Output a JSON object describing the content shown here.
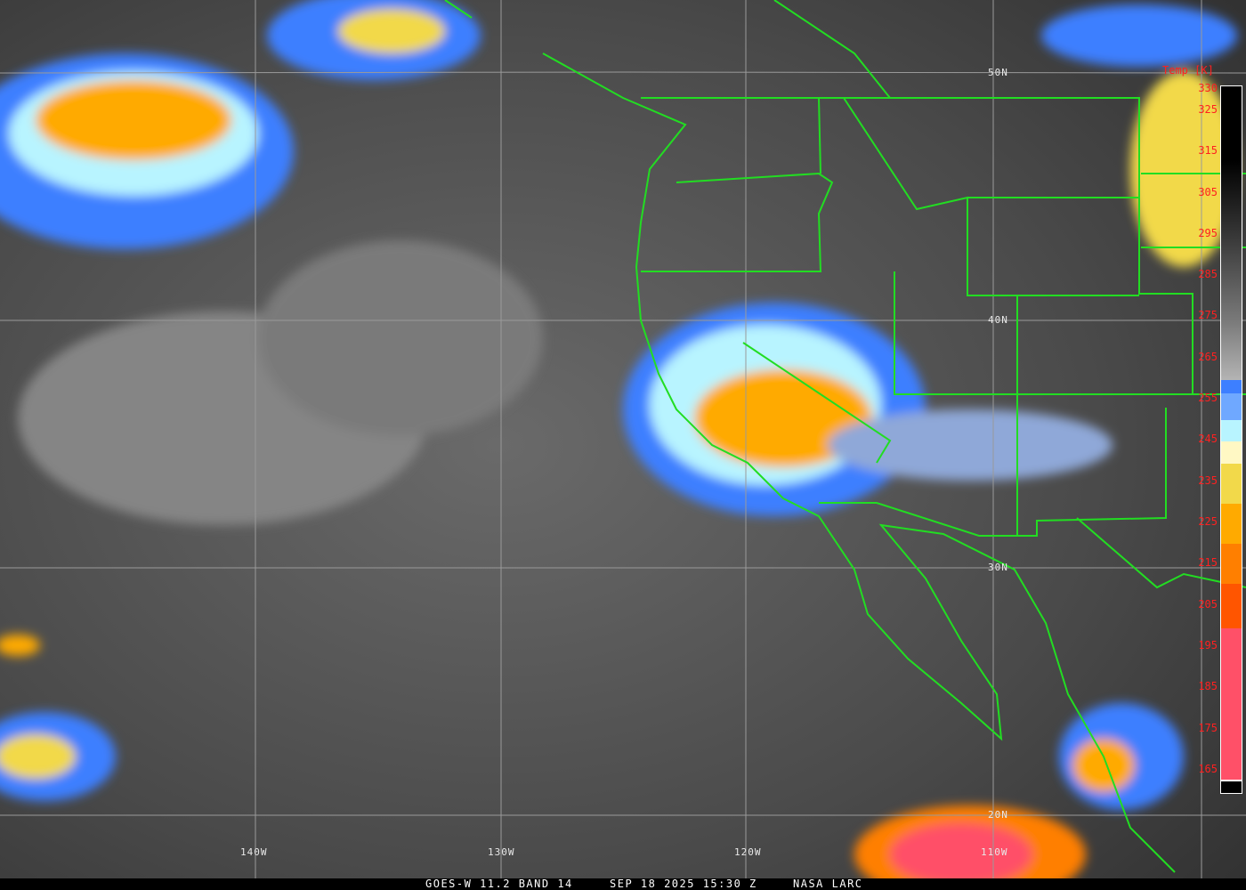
{
  "map": {
    "satellite": "GOES-W",
    "latitude_labels": [
      "50N",
      "40N",
      "30N",
      "20N"
    ],
    "longitude_labels": [
      "140W",
      "130W",
      "120W",
      "110W"
    ],
    "border_color": "#22dd22",
    "grid_color": "#9a9a9a"
  },
  "colorbar": {
    "title": "Temp [K]",
    "ticks": [
      "330",
      "325",
      "315",
      "305",
      "295",
      "285",
      "275",
      "265",
      "255",
      "245",
      "235",
      "225",
      "215",
      "205",
      "195",
      "185",
      "175",
      "165"
    ],
    "tick_color": "#ff2020",
    "segments": [
      {
        "color": "#3d7fff"
      },
      {
        "color": "#6fa8ff"
      },
      {
        "color": "#b8f4ff"
      },
      {
        "color": "#fff8c4"
      },
      {
        "color": "#f2d94a"
      },
      {
        "color": "#ffaa00"
      },
      {
        "color": "#ff7f00"
      },
      {
        "color": "#ff5500"
      },
      {
        "color": "#ff5068"
      }
    ]
  },
  "caption": {
    "product": "GOES-W 11.2 BAND 14",
    "datetime": "SEP 18 2025 15:30 Z",
    "source": "NASA LARC"
  }
}
